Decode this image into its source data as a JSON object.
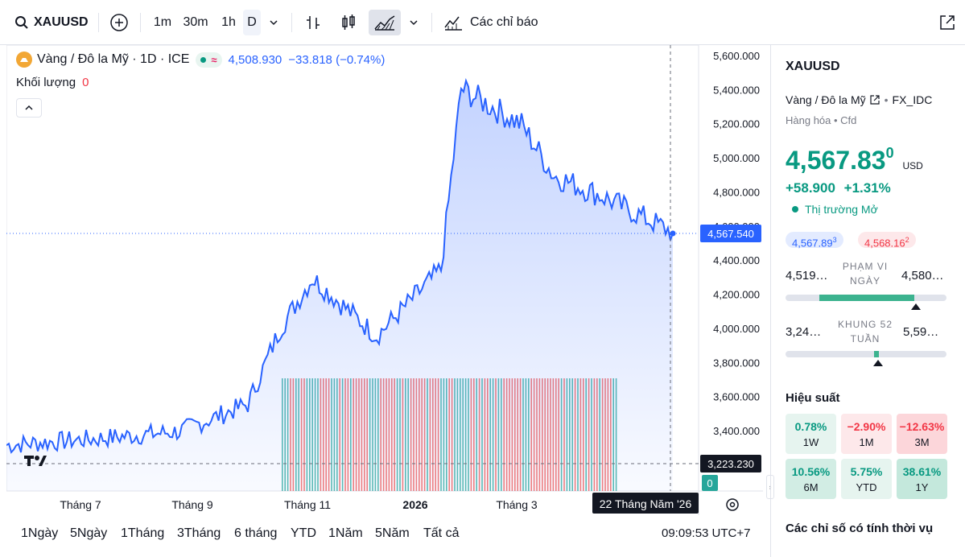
{
  "toolbar": {
    "symbol": "XAUUSD",
    "intervals": [
      "1m",
      "30m",
      "1h",
      "D"
    ],
    "indicators_label": "Các chỉ báo"
  },
  "legend": {
    "title": "Vàng / Đô la Mỹ · 1D · ICE",
    "last": "4,508.930",
    "change": "−33.818 (−0.74%)",
    "volume_label": "Khối lượng",
    "volume_value": "0"
  },
  "axis": {
    "price_ticks": [
      "5,600.000",
      "5,400.000",
      "5,200.000",
      "5,000.000",
      "4,800.000",
      "4,600.000",
      "4,400.000",
      "4,200.000",
      "4,000.000",
      "3,800.000",
      "3,600.000",
      "3,400.000"
    ],
    "current_price": "4,567.540",
    "crosshair_price": "3,223.230",
    "volume_tag": "0",
    "time_ticks": [
      "Tháng 7",
      "Tháng 9",
      "Tháng 11",
      "2026",
      "Tháng 3"
    ],
    "crosshair_date": "22 Tháng Năm '26"
  },
  "chart_data": {
    "type": "area",
    "title": "Vàng / Đô la Mỹ · 1D · ICE",
    "xlabel": "",
    "ylabel": "",
    "ylim": [
      3200,
      5650
    ],
    "x": [
      "2025-06",
      "2025-07",
      "2025-08",
      "2025-09",
      "2025-10",
      "2025-10-15",
      "2025-11",
      "2025-12",
      "2026-01",
      "2026-01-28",
      "2026-02",
      "2026-03",
      "2026-04",
      "2026-05"
    ],
    "series": [
      {
        "values": [
          3320,
          3340,
          3360,
          3400,
          3560,
          4000,
          4300,
          3960,
          4350,
          5410,
          5200,
          4900,
          4780,
          4567.54
        ]
      }
    ],
    "colors": {
      "line": "#2962ff",
      "fill": "#2962ff",
      "up": "#26a69a",
      "down": "#ef5350"
    }
  },
  "bottombar": {
    "ranges": [
      "1Ngày",
      "5Ngày",
      "1Tháng",
      "3Tháng",
      "6 tháng",
      "YTD",
      "1Năm",
      "5Năm",
      "Tất cả"
    ],
    "clock": "09:09:53 UTC+7"
  },
  "panel": {
    "symbol": "XAUUSD",
    "name": "Vàng / Đô la Mỹ",
    "exchange": "FX_IDC",
    "category": "Hàng hóa • Cfd",
    "price": "4,567.83",
    "price_sup": "0",
    "currency": "USD",
    "change": "+58.900",
    "change_pct": "+1.31%",
    "market_status": "Thị trường Mở",
    "bid": "4,567.89",
    "bid_sup": "3",
    "ask": "4,568.16",
    "ask_sup": "2",
    "day_low": "4,519…",
    "day_label_1": "PHẠM VI",
    "day_label_2": "NGÀY",
    "day_high": "4,580…",
    "wk_low": "3,24…",
    "wk_label_1": "KHUNG 52",
    "wk_label_2": "TUẦN",
    "wk_high": "5,59…",
    "perf_title": "Hiệu suất",
    "perf": [
      {
        "value": "0.78%",
        "period": "1W"
      },
      {
        "value": "−2.90%",
        "period": "1M"
      },
      {
        "value": "−12.63%",
        "period": "3M"
      },
      {
        "value": "10.56%",
        "period": "6M"
      },
      {
        "value": "5.75%",
        "period": "YTD"
      },
      {
        "value": "38.61%",
        "period": "1Y"
      }
    ],
    "seasonal_title": "Các chỉ số có tính thời vụ"
  }
}
